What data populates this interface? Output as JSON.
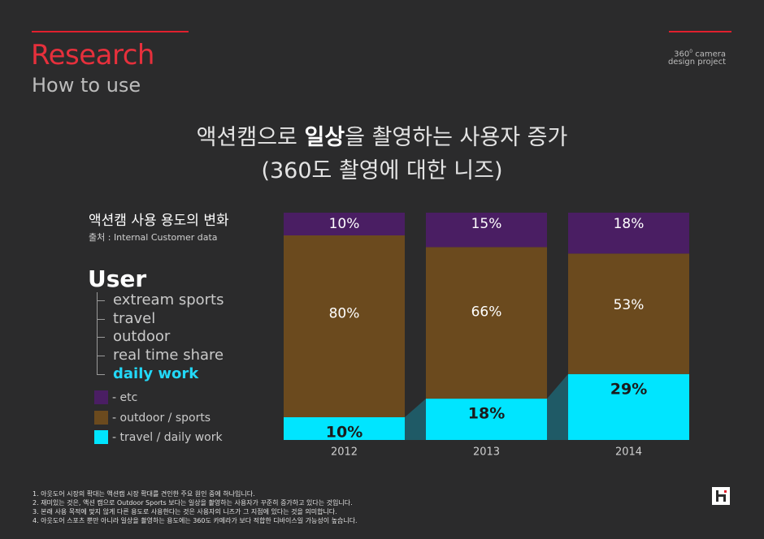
{
  "header": {
    "title": "Research",
    "subtitle": "How to use",
    "project_line1_prefix": "360",
    "project_line1_sup": "0",
    "project_line1_suffix": " camera",
    "project_line2": "design project"
  },
  "headline": {
    "line1_before": "액션캠으로 ",
    "line1_highlight": "일상",
    "line1_after": "을 촬영하는 사용자 증가",
    "line2": "(360도 촬영에 대한 니즈)"
  },
  "chart_header": {
    "title": "액션캠 사용 용도의 변화",
    "source": "출처 : Internal Customer data"
  },
  "user_tree": {
    "heading": "User",
    "items": [
      {
        "label": "extream sports"
      },
      {
        "label": "travel"
      },
      {
        "label": "outdoor"
      },
      {
        "label": "real time share"
      },
      {
        "label": "daily work"
      }
    ]
  },
  "legend": [
    {
      "label": "- etc",
      "color": "#4a1e63"
    },
    {
      "label": "- outdoor  / sports",
      "color": "#6b4a1e"
    },
    {
      "label": "- travel / daily work",
      "color": "#00e5ff"
    }
  ],
  "chart_data": {
    "type": "bar",
    "stacked": true,
    "categories": [
      "2012",
      "2013",
      "2014"
    ],
    "series": [
      {
        "name": "travel / daily work",
        "values": [
          10,
          18,
          29
        ],
        "color": "#00e5ff"
      },
      {
        "name": "outdoor  / sports",
        "values": [
          80,
          66,
          53
        ],
        "color": "#6b4a1e"
      },
      {
        "name": "etc",
        "values": [
          10,
          15,
          18
        ],
        "color": "#4a1e63"
      }
    ],
    "data_labels": [
      [
        "10%",
        "18%",
        "29%"
      ],
      [
        "80%",
        "66%",
        "53%"
      ],
      [
        "10%",
        "15%",
        "18%"
      ]
    ],
    "ylim": [
      0,
      100
    ],
    "connector_color": "#1f5a66"
  },
  "footnotes": [
    "1. 아웃도어 시장의 확대는 액션캠 시장 확대를 견인한 주요 원인 중에 하나입니다.",
    "2. 재미있는 것은, 액션 캠으로  Outdoor Sports 보다는 일상을 촬영하는 사용자가 꾸준히 증가하고 있다는 것입니다.",
    "3. 본래 사용 목적에 맞지 않게 다른 용도로 사용한다는 것은 사용자의 니즈가 그 지점에 있다는 것을 의미합니다.",
    "4. 아웃도어 스포츠 뿐만 아니라 일상을 촬영하는 용도에는 360도 카메라가 보다 적합한 디바이스일 가능성이 높습니다."
  ]
}
